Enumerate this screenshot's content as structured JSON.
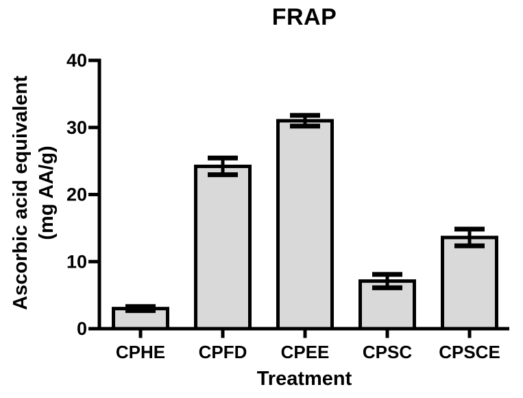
{
  "page": {
    "background": "#ffffff",
    "text_color": "#000000"
  },
  "chart_data": {
    "type": "bar",
    "title": "FRAP",
    "xlabel": "Treatment",
    "ylabel": "Ascorbic acid equivalent (mg AA/g)",
    "ylabel_lines": [
      "Ascorbic acid equivalent",
      "(mg AA/g)"
    ],
    "categories": [
      "CPHE",
      "CPFD",
      "CPEE",
      "CPSC",
      "CPSCE"
    ],
    "values": [
      3.0,
      24.2,
      31.0,
      7.1,
      13.6
    ],
    "errors": [
      0.3,
      1.25,
      0.8,
      1.0,
      1.25
    ],
    "error_style": "symmetric-capped",
    "ylim": [
      0,
      40
    ],
    "yticks": [
      0,
      10,
      20,
      30,
      40
    ],
    "grid": false,
    "legend": null,
    "bar_fill": "#d9d9d9",
    "bar_stroke": "#000000",
    "error_color": "#000000",
    "axis_color": "#000000"
  }
}
